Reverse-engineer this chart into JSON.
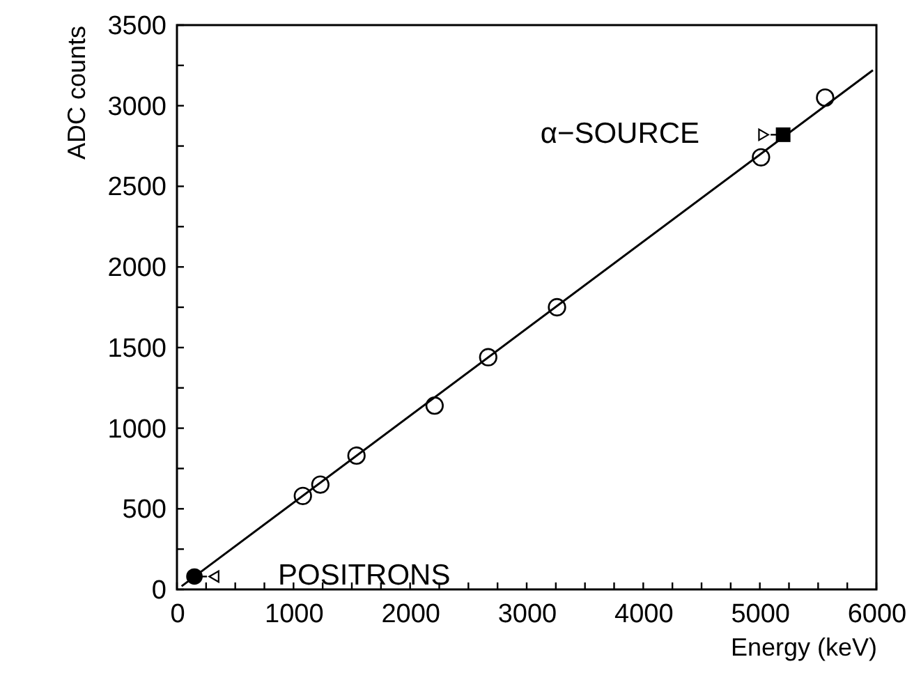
{
  "chart_data": {
    "type": "scatter",
    "xlabel": "Energy (keV)",
    "ylabel": "ADC counts",
    "xlim": [
      0,
      6000
    ],
    "ylim": [
      0,
      3500
    ],
    "xticks": [
      0,
      {
        "value": 250,
        "label": null
      },
      {
        "value": 500,
        "label": null
      },
      {
        "value": 750,
        "label": null
      },
      1000,
      {
        "value": 1250,
        "label": null
      },
      {
        "value": 1500,
        "label": null
      },
      {
        "value": 1750,
        "label": null
      },
      2000,
      {
        "value": 2250,
        "label": null
      },
      {
        "value": 2500,
        "label": null
      },
      {
        "value": 2750,
        "label": null
      },
      3000,
      {
        "value": 3250,
        "label": null
      },
      {
        "value": 3500,
        "label": null
      },
      {
        "value": 3750,
        "label": null
      },
      4000,
      {
        "value": 4250,
        "label": null
      },
      {
        "value": 4500,
        "label": null
      },
      {
        "value": 4750,
        "label": null
      },
      5000,
      {
        "value": 5250,
        "label": null
      },
      {
        "value": 5500,
        "label": null
      },
      {
        "value": 5750,
        "label": null
      },
      6000
    ],
    "yticks": [
      0,
      {
        "value": 250,
        "label": null
      },
      500,
      {
        "value": 750,
        "label": null
      },
      1000,
      {
        "value": 1250,
        "label": null
      },
      1500,
      {
        "value": 1750,
        "label": null
      },
      2000,
      {
        "value": 2250,
        "label": null
      },
      2500,
      {
        "value": 2750,
        "label": null
      },
      3000,
      {
        "value": 3250,
        "label": null
      },
      3500
    ],
    "grid": false,
    "series": [
      {
        "type": "line",
        "color": "#000000",
        "x": [
          40,
          5970
        ],
        "values": [
          20,
          3220
        ],
        "line_style": "solid"
      },
      {
        "color": "#000000",
        "marker": "circle",
        "x": [
          1080,
          1230,
          1540,
          2210,
          2670,
          3260,
          5010,
          5560
        ],
        "values": [
          580,
          650,
          830,
          1140,
          1440,
          1750,
          2680,
          3050
        ]
      },
      {
        "color": "#000000",
        "marker": "square",
        "x": [
          5200
        ],
        "values": [
          2820
        ]
      },
      {
        "color": "#000000",
        "marker": "circle",
        "x": [
          150
        ],
        "values": [
          80
        ]
      }
    ],
    "annotations": [
      {
        "text": "α−SOURCE",
        "x": 5200,
        "y": 2820
      },
      {
        "text": "POSITRONS",
        "x": 150,
        "y": 80
      }
    ]
  }
}
